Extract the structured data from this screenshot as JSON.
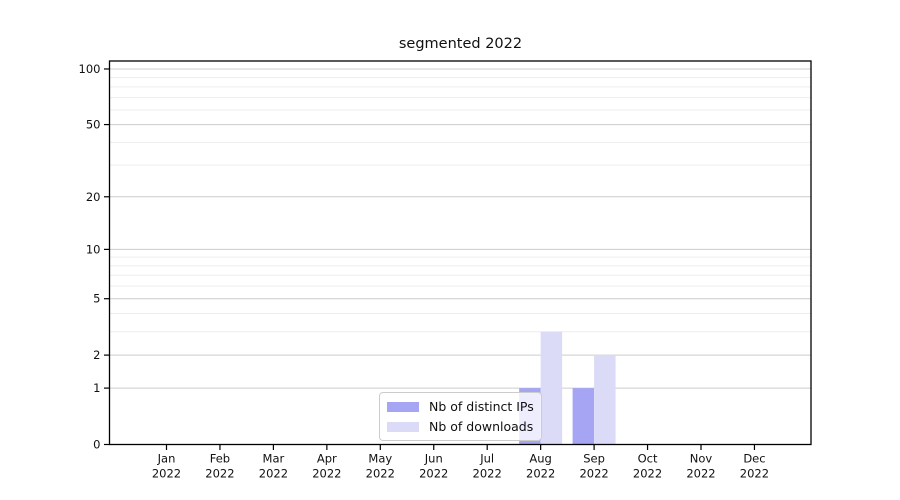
{
  "title": "segmented 2022",
  "chart_data": {
    "type": "bar",
    "title": "segmented 2022",
    "categories": [
      "Jan",
      "Feb",
      "Mar",
      "Apr",
      "May",
      "Jun",
      "Jul",
      "Aug",
      "Sep",
      "Oct",
      "Nov",
      "Dec"
    ],
    "category_year": "2022",
    "series": [
      {
        "name": "Nb of distinct IPs",
        "color": "#a5a5f3",
        "values": [
          0,
          0,
          0,
          0,
          0,
          0,
          0,
          1,
          1,
          0,
          0,
          0
        ]
      },
      {
        "name": "Nb of downloads",
        "color": "#dbdbf8",
        "values": [
          0,
          0,
          0,
          0,
          0,
          0,
          0,
          3,
          2,
          0,
          0,
          0
        ]
      }
    ],
    "y_axis": {
      "scale": "log1p",
      "ticks": [
        0,
        1,
        2,
        5,
        10,
        20,
        50,
        100
      ],
      "minor_ticks": [
        3,
        4,
        6,
        7,
        8,
        9,
        30,
        40,
        60,
        70,
        80,
        90
      ],
      "min": 0,
      "max": 110
    },
    "xlabel": "",
    "ylabel": "",
    "grid": true,
    "legend_position": "lower center"
  },
  "colors": {
    "distinct_ips_bar": "#a5a5f3",
    "downloads_bar": "#dbdbf8",
    "major_grid": "#cccccc",
    "minor_grid": "#ededed",
    "axis": "#000000"
  }
}
